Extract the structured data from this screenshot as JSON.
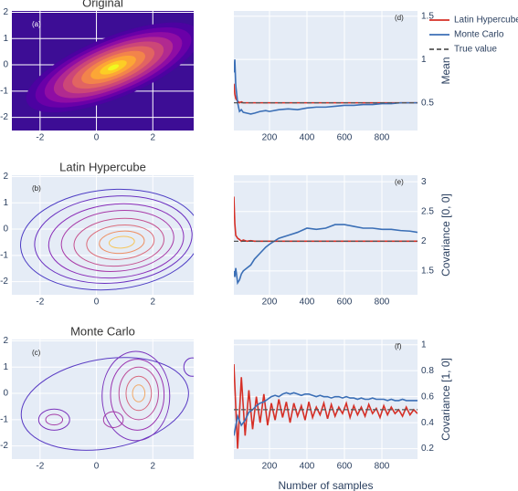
{
  "chart_data": [
    {
      "type": "contour",
      "title": "Original",
      "label": "(a)",
      "filled": true,
      "background": "#3d0d95",
      "xlim": [
        -3,
        3.45
      ],
      "ylim": [
        -2.5,
        2.05
      ],
      "xticks": [
        -2,
        0,
        2
      ],
      "yticks": [
        -2,
        -1,
        0,
        1,
        2
      ],
      "contours": [
        {
          "cx": 0.6,
          "cy": -0.1,
          "rx": 3.3,
          "ry": 1.15,
          "angle": 22,
          "color": "#4c02a1"
        },
        {
          "cx": 0.6,
          "cy": -0.1,
          "rx": 2.95,
          "ry": 1.02,
          "angle": 22,
          "color": "#6a00a8"
        },
        {
          "cx": 0.6,
          "cy": -0.1,
          "rx": 2.6,
          "ry": 0.9,
          "angle": 22,
          "color": "#8f0da4"
        },
        {
          "cx": 0.6,
          "cy": -0.1,
          "rx": 2.25,
          "ry": 0.78,
          "angle": 22,
          "color": "#b12a90"
        },
        {
          "cx": 0.6,
          "cy": -0.1,
          "rx": 1.9,
          "ry": 0.66,
          "angle": 22,
          "color": "#cc4778"
        },
        {
          "cx": 0.6,
          "cy": -0.1,
          "rx": 1.55,
          "ry": 0.54,
          "angle": 22,
          "color": "#e16462"
        },
        {
          "cx": 0.6,
          "cy": -0.1,
          "rx": 1.2,
          "ry": 0.42,
          "angle": 22,
          "color": "#f2844b"
        },
        {
          "cx": 0.6,
          "cy": -0.1,
          "rx": 0.85,
          "ry": 0.3,
          "angle": 22,
          "color": "#fca636"
        },
        {
          "cx": 0.6,
          "cy": -0.1,
          "rx": 0.5,
          "ry": 0.18,
          "angle": 22,
          "color": "#fcce25"
        },
        {
          "cx": 0.6,
          "cy": -0.1,
          "rx": 0.2,
          "ry": 0.08,
          "angle": 22,
          "color": "#f0f921"
        }
      ]
    },
    {
      "type": "contour",
      "title": "Latin Hypercube",
      "label": "(b)",
      "filled": false,
      "xlim": [
        -3,
        3.45
      ],
      "ylim": [
        -2.5,
        2.05
      ],
      "xticks": [
        -2,
        0,
        2
      ],
      "yticks": [
        -2,
        -1,
        0,
        1,
        2
      ],
      "contours": [
        {
          "cx": 0.5,
          "cy": -0.4,
          "rx": 3.2,
          "ry": 1.9,
          "angle": 5,
          "color": "#4c3bc4"
        },
        {
          "cx": 0.6,
          "cy": -0.4,
          "rx": 2.8,
          "ry": 1.65,
          "angle": 5,
          "color": "#6a2fc0"
        },
        {
          "cx": 0.7,
          "cy": -0.45,
          "rx": 2.4,
          "ry": 1.4,
          "angle": 5,
          "color": "#8a2cb8"
        },
        {
          "cx": 0.75,
          "cy": -0.45,
          "rx": 2.0,
          "ry": 1.15,
          "angle": 5,
          "color": "#a83aa8"
        },
        {
          "cx": 0.8,
          "cy": -0.5,
          "rx": 1.6,
          "ry": 0.9,
          "angle": 5,
          "color": "#c4508f"
        },
        {
          "cx": 0.85,
          "cy": -0.5,
          "rx": 1.2,
          "ry": 0.65,
          "angle": 5,
          "color": "#dc6c7a"
        },
        {
          "cx": 0.9,
          "cy": -0.5,
          "rx": 0.8,
          "ry": 0.42,
          "angle": 5,
          "color": "#ee9065"
        },
        {
          "cx": 0.9,
          "cy": -0.5,
          "rx": 0.45,
          "ry": 0.22,
          "angle": 5,
          "color": "#f6c55a"
        }
      ]
    },
    {
      "type": "contour",
      "title": "Monte Carlo",
      "label": "(c)",
      "filled": false,
      "xlim": [
        -3,
        3.45
      ],
      "ylim": [
        -2.5,
        2.05
      ],
      "xticks": [
        -2,
        0,
        2
      ],
      "yticks": [
        -2,
        -1,
        0,
        1,
        2
      ],
      "contours": [
        {
          "cx": 0.3,
          "cy": -0.4,
          "rx": 3.0,
          "ry": 1.7,
          "angle": 10,
          "color": "#5a3cc4"
        },
        {
          "cx": 1.4,
          "cy": -0.1,
          "rx": 1.2,
          "ry": 1.7,
          "angle": 0,
          "color": "#7a32bc"
        },
        {
          "cx": 1.45,
          "cy": -0.05,
          "rx": 0.95,
          "ry": 1.35,
          "angle": 0,
          "color": "#9a34b0"
        },
        {
          "cx": 1.5,
          "cy": 0.0,
          "rx": 0.7,
          "ry": 1.0,
          "angle": 0,
          "color": "#bb4a98"
        },
        {
          "cx": 1.5,
          "cy": 0.0,
          "rx": 0.45,
          "ry": 0.65,
          "angle": 0,
          "color": "#d86a7e"
        },
        {
          "cx": 1.5,
          "cy": 0.0,
          "rx": 0.22,
          "ry": 0.32,
          "angle": 0,
          "color": "#f0a968"
        },
        {
          "cx": -1.5,
          "cy": -1.0,
          "rx": 0.55,
          "ry": 0.4,
          "angle": 0,
          "color": "#7a32bc"
        },
        {
          "cx": -1.5,
          "cy": -1.0,
          "rx": 0.3,
          "ry": 0.2,
          "angle": 0,
          "color": "#a43aa6"
        },
        {
          "cx": 0.6,
          "cy": -1.0,
          "rx": 0.35,
          "ry": 0.3,
          "angle": 0,
          "color": "#a43aa6"
        },
        {
          "cx": 3.4,
          "cy": 1.0,
          "rx": 0.3,
          "ry": 0.35,
          "angle": 0,
          "color": "#6a2fc0"
        }
      ]
    },
    {
      "type": "line",
      "label": "(d)",
      "ylabel": "Mean",
      "legend": true,
      "xlim": [
        10,
        990
      ],
      "ylim": [
        0.18,
        1.56
      ],
      "xticks": [
        200,
        400,
        600,
        800
      ],
      "yticks": [
        0.5,
        1,
        1.5
      ],
      "x": [
        10,
        15,
        20,
        30,
        40,
        50,
        60,
        80,
        100,
        120,
        150,
        180,
        200,
        250,
        300,
        350,
        400,
        450,
        500,
        550,
        600,
        650,
        700,
        750,
        800,
        850,
        900,
        950,
        990
      ],
      "series": [
        {
          "name": "Latin Hypercube",
          "color": "#d62f26",
          "values": [
            0.72,
            0.6,
            0.55,
            0.52,
            0.5,
            0.51,
            0.5,
            0.5,
            0.5,
            0.5,
            0.5,
            0.5,
            0.5,
            0.5,
            0.5,
            0.5,
            0.5,
            0.5,
            0.5,
            0.5,
            0.5,
            0.5,
            0.5,
            0.5,
            0.5,
            0.5,
            0.5,
            0.5,
            0.5
          ]
        },
        {
          "name": "Monte Carlo",
          "color": "#3b6fb6",
          "values": [
            0.85,
            1.0,
            0.7,
            0.5,
            0.4,
            0.42,
            0.39,
            0.38,
            0.37,
            0.38,
            0.4,
            0.41,
            0.4,
            0.42,
            0.43,
            0.42,
            0.44,
            0.45,
            0.45,
            0.46,
            0.47,
            0.47,
            0.48,
            0.48,
            0.49,
            0.49,
            0.5,
            0.5,
            0.5
          ]
        }
      ],
      "reference": {
        "name": "True value",
        "value": 0.5,
        "color": "#555555"
      }
    },
    {
      "type": "line",
      "label": "(e)",
      "ylabel": "Covariance [0, 0]",
      "xlim": [
        10,
        990
      ],
      "ylim": [
        1.1,
        3.11
      ],
      "xticks": [
        200,
        400,
        600,
        800
      ],
      "yticks": [
        1.5,
        2,
        2.5,
        3
      ],
      "x": [
        10,
        15,
        20,
        30,
        40,
        50,
        60,
        80,
        100,
        120,
        150,
        180,
        200,
        250,
        300,
        350,
        400,
        450,
        500,
        550,
        600,
        650,
        700,
        750,
        800,
        850,
        900,
        950,
        990
      ],
      "series": [
        {
          "name": "Latin Hypercube",
          "color": "#d62f26",
          "values": [
            2.75,
            2.3,
            2.1,
            2.05,
            2.03,
            2.0,
            2.02,
            2.0,
            2.01,
            2.0,
            2.0,
            2.0,
            2.0,
            2.0,
            2.0,
            2.0,
            2.0,
            2.0,
            2.0,
            2.0,
            2.0,
            2.0,
            2.0,
            2.0,
            2.0,
            2.0,
            2.0,
            2.0,
            2.0
          ]
        },
        {
          "name": "Monte Carlo",
          "color": "#3b6fb6",
          "values": [
            1.5,
            1.4,
            1.55,
            1.3,
            1.35,
            1.45,
            1.5,
            1.55,
            1.6,
            1.7,
            1.8,
            1.9,
            1.95,
            2.05,
            2.1,
            2.15,
            2.22,
            2.2,
            2.22,
            2.28,
            2.28,
            2.25,
            2.22,
            2.22,
            2.2,
            2.2,
            2.18,
            2.17,
            2.15
          ]
        }
      ],
      "reference": {
        "name": "True value",
        "value": 2,
        "color": "#555555"
      }
    },
    {
      "type": "line",
      "label": "(f)",
      "ylabel": "Covariance [1, 0]",
      "xlabel": "Number of samples",
      "xlim": [
        10,
        990
      ],
      "ylim": [
        0.12,
        1.04
      ],
      "xticks": [
        200,
        400,
        600,
        800
      ],
      "yticks": [
        0.2,
        0.4,
        0.6,
        0.8,
        1
      ],
      "x": [
        10,
        30,
        50,
        70,
        90,
        110,
        130,
        150,
        170,
        190,
        210,
        230,
        250,
        270,
        290,
        310,
        330,
        350,
        370,
        390,
        410,
        430,
        450,
        470,
        490,
        510,
        530,
        550,
        570,
        590,
        610,
        630,
        650,
        670,
        690,
        710,
        730,
        750,
        770,
        790,
        810,
        830,
        850,
        870,
        890,
        910,
        930,
        950,
        970,
        990
      ],
      "series": [
        {
          "name": "Latin Hypercube",
          "color": "#d62f26",
          "values": [
            0.85,
            0.2,
            0.75,
            0.3,
            0.65,
            0.35,
            0.6,
            0.4,
            0.62,
            0.38,
            0.55,
            0.42,
            0.58,
            0.44,
            0.56,
            0.4,
            0.55,
            0.45,
            0.53,
            0.42,
            0.56,
            0.44,
            0.52,
            0.46,
            0.55,
            0.43,
            0.54,
            0.45,
            0.52,
            0.47,
            0.55,
            0.44,
            0.53,
            0.46,
            0.52,
            0.45,
            0.54,
            0.47,
            0.51,
            0.44,
            0.53,
            0.46,
            0.52,
            0.47,
            0.5,
            0.45,
            0.52,
            0.46,
            0.5,
            0.47
          ]
        },
        {
          "name": "Monte Carlo",
          "color": "#3b6fb6",
          "values": [
            0.3,
            0.45,
            0.38,
            0.42,
            0.48,
            0.5,
            0.53,
            0.55,
            0.56,
            0.58,
            0.6,
            0.61,
            0.6,
            0.62,
            0.63,
            0.62,
            0.63,
            0.62,
            0.61,
            0.62,
            0.62,
            0.61,
            0.6,
            0.61,
            0.6,
            0.6,
            0.59,
            0.6,
            0.6,
            0.59,
            0.6,
            0.59,
            0.59,
            0.58,
            0.59,
            0.58,
            0.58,
            0.59,
            0.58,
            0.58,
            0.58,
            0.57,
            0.58,
            0.57,
            0.57,
            0.58,
            0.57,
            0.57,
            0.57,
            0.57
          ]
        }
      ],
      "reference": {
        "name": "True value",
        "value": 0.5,
        "color": "#555555"
      }
    }
  ]
}
